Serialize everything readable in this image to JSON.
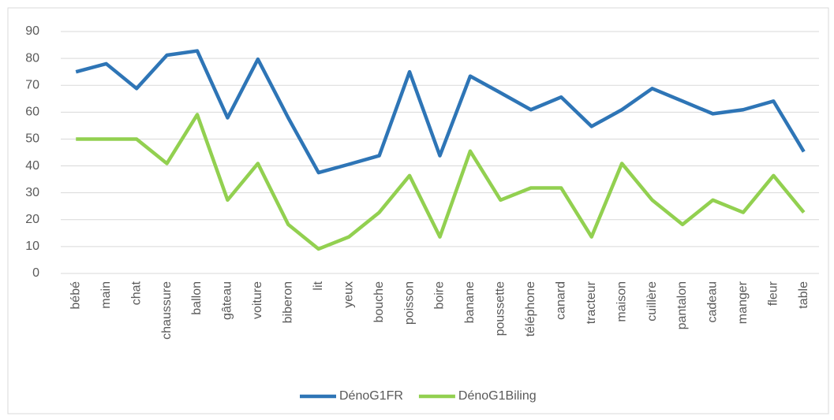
{
  "chart_data": {
    "type": "line",
    "categories": [
      "bébé",
      "main",
      "chat",
      "chaussure",
      "ballon",
      "gâteau",
      "voiture",
      "biberon",
      "lit",
      "yeux",
      "bouche",
      "poisson",
      "boire",
      "banane",
      "poussette",
      "téléphone",
      "canard",
      "tracteur",
      "maison",
      "cuillère",
      "pantalon",
      "cadeau",
      "manger",
      "fleur",
      "table"
    ],
    "series": [
      {
        "name": "DénoG1FR",
        "color": "#2e75b6",
        "values": [
          75,
          78,
          68.8,
          81.2,
          82.8,
          57.9,
          79.7,
          57.9,
          37.5,
          40.6,
          43.8,
          75,
          43.8,
          73.4,
          67.2,
          60.9,
          65.6,
          54.7,
          60.9,
          68.8,
          64.1,
          59.4,
          60.9,
          64.1,
          45.3
        ]
      },
      {
        "name": "DénoG1Biling",
        "color": "#92d050",
        "values": [
          50,
          50,
          50,
          40.9,
          59.1,
          27.3,
          40.9,
          18.2,
          9.1,
          13.6,
          22.7,
          36.4,
          13.6,
          45.5,
          27.3,
          31.8,
          31.8,
          13.6,
          40.9,
          27.3,
          18.2,
          27.3,
          22.7,
          36.4,
          22.7
        ]
      }
    ],
    "ylim": [
      0,
      90
    ],
    "yticks": [
      0,
      10,
      20,
      30,
      40,
      50,
      60,
      70,
      80,
      90
    ],
    "grid": true,
    "legend": "bottom"
  }
}
